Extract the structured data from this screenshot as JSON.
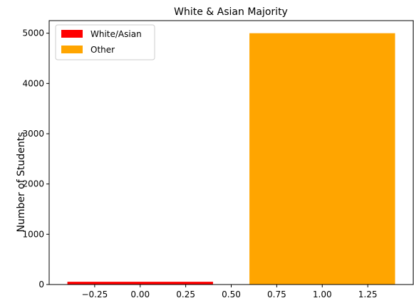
{
  "chart_data": {
    "type": "bar",
    "title": "White & Asian Majority",
    "xlabel": "",
    "ylabel": "Number of Students",
    "bars": [
      {
        "name": "White/Asian",
        "x": 0,
        "value": 55,
        "color": "#ff0000"
      },
      {
        "name": "Other",
        "x": 1,
        "value": 5000,
        "color": "#ffa500"
      }
    ],
    "bar_width": 0.8,
    "xlim": [
      -0.5,
      1.5
    ],
    "ylim": [
      0,
      5250
    ],
    "xticks": [
      -0.25,
      0.0,
      0.25,
      0.5,
      0.75,
      1.0,
      1.25
    ],
    "xtick_labels": [
      "−0.25",
      "0.00",
      "0.25",
      "0.50",
      "0.75",
      "1.00",
      "1.25"
    ],
    "yticks": [
      0,
      1000,
      2000,
      3000,
      4000,
      5000
    ],
    "ytick_labels": [
      "0",
      "1000",
      "2000",
      "3000",
      "4000",
      "5000"
    ],
    "legend_position": "upper-left",
    "legend": [
      "White/Asian",
      "Other"
    ],
    "grid": false
  }
}
